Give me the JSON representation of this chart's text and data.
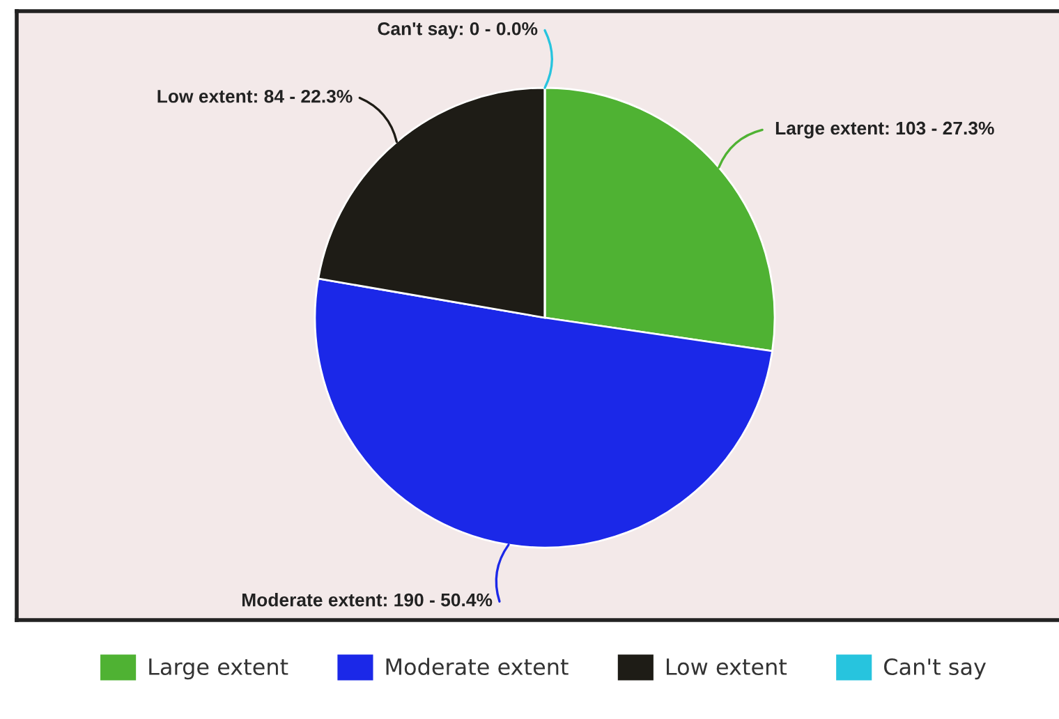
{
  "chart_data": {
    "type": "pie",
    "categories": [
      "Large extent",
      "Moderate extent",
      "Low extent",
      "Can't say"
    ],
    "values": [
      103,
      190,
      84,
      0
    ],
    "colors": [
      "#4fb233",
      "#1b28e8",
      "#1e1c16",
      "#27c4de"
    ],
    "value_labels": [
      "Large extent: 103 - 27.3%",
      "Moderate extent: 190 - 50.4%",
      "Low extent: 84 - 22.3%",
      "Can't say: 0 - 0.0%"
    ],
    "legend": "bottom"
  }
}
